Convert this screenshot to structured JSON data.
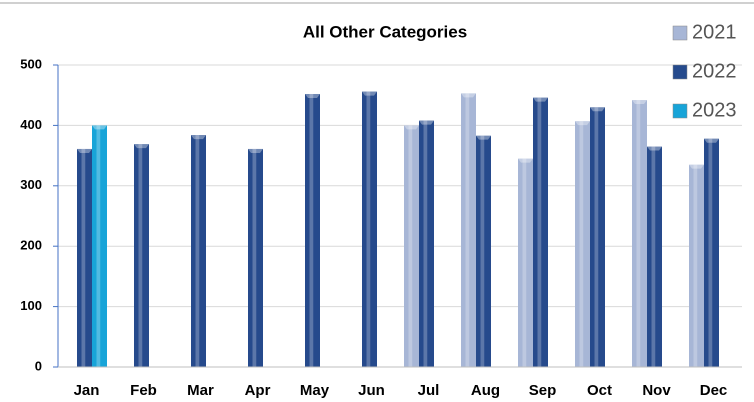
{
  "chart_data": {
    "type": "bar",
    "title": "All Other Categories",
    "categories": [
      "Jan",
      "Feb",
      "Mar",
      "Apr",
      "May",
      "Jun",
      "Jul",
      "Aug",
      "Sep",
      "Oct",
      "Nov",
      "Dec"
    ],
    "series": [
      {
        "name": "2021",
        "color": "#a7b6d6",
        "values": [
          null,
          null,
          null,
          null,
          null,
          null,
          400,
          453,
          345,
          407,
          442,
          335
        ]
      },
      {
        "name": "2022",
        "color": "#264a8c",
        "values": [
          361,
          369,
          384,
          361,
          452,
          456,
          408,
          383,
          446,
          430,
          365,
          378
        ]
      },
      {
        "name": "2023",
        "color": "#18a4d8",
        "values": [
          400,
          null,
          null,
          null,
          null,
          null,
          null,
          null,
          null,
          null,
          null,
          null
        ]
      }
    ],
    "ylim": [
      0,
      500
    ],
    "yticks": [
      0,
      100,
      200,
      300,
      400,
      500
    ],
    "grid": true
  }
}
